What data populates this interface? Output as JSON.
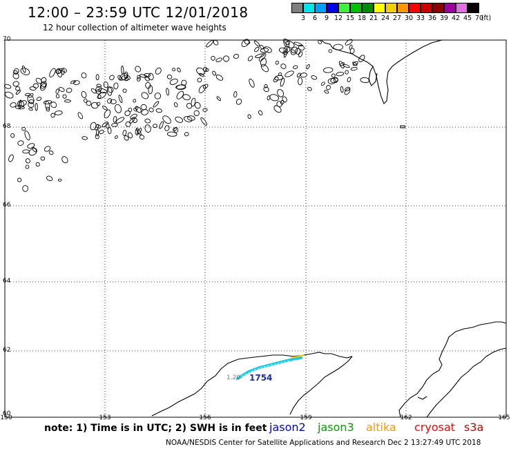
{
  "header": {
    "title": "12:00 – 23:59 UTC 12/01/2018",
    "subtitle": "12 hour collection of altimeter wave heights"
  },
  "legend": {
    "unit": "(ft)",
    "items": [
      {
        "label": "3",
        "color": "#7f7f7f"
      },
      {
        "label": "6",
        "color": "#00e6e6"
      },
      {
        "label": "9",
        "color": "#00a0ff"
      },
      {
        "label": "12",
        "color": "#0000e6"
      },
      {
        "label": "15",
        "color": "#40f040"
      },
      {
        "label": "18",
        "color": "#00c000"
      },
      {
        "label": "21",
        "color": "#008c00"
      },
      {
        "label": "24",
        "color": "#ffff00"
      },
      {
        "label": "27",
        "color": "#f0d000"
      },
      {
        "label": "30",
        "color": "#ff9600"
      },
      {
        "label": "33",
        "color": "#ff0000"
      },
      {
        "label": "36",
        "color": "#c80000"
      },
      {
        "label": "39",
        "color": "#8c0000"
      },
      {
        "label": "42",
        "color": "#a000a0"
      },
      {
        "label": "45",
        "color": "#e070e0"
      },
      {
        "label": "70",
        "color": "#000000"
      }
    ]
  },
  "map": {
    "latitudes": [
      "70",
      "68",
      "66",
      "64",
      "62",
      "60"
    ],
    "longitudes": [
      "150",
      "153",
      "156",
      "159",
      "162",
      "165"
    ],
    "pass_label": "1754",
    "pass_swh": "1.20"
  },
  "footer": {
    "note": "note: 1) Time is in UTC; 2) SWH is in feet",
    "satellites": [
      {
        "name": "jason2",
        "color": "#0000e6"
      },
      {
        "name": "jason3",
        "color": "#00a000"
      },
      {
        "name": "altika",
        "color": "#ff9600"
      },
      {
        "name": "cryosat",
        "color": "#ff0000"
      },
      {
        "name": "s3a",
        "color": "#c80000"
      }
    ],
    "credit": "NOAA/NESDIS Center for Satellite Applications and Research    Dec  2 13:27:49 UTC 2018"
  }
}
